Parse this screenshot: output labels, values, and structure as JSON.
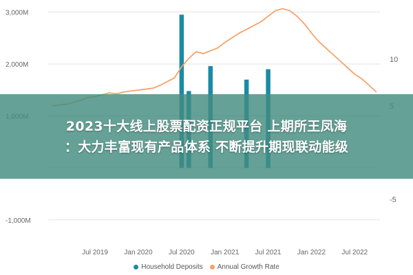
{
  "headline": {
    "line1": "2023十大线上股票配资正规平台 上期所王凤海",
    "line2": "：大力丰富现有产品体系 不断提升期现联动能级"
  },
  "chart_data": {
    "type": "bar",
    "title": "",
    "xlabel": "",
    "ylabel": "",
    "y2label": "",
    "y_ticks": [
      {
        "value": 3000,
        "label": "3,000M"
      },
      {
        "value": 2000,
        "label": "2,000M"
      },
      {
        "value": 1000,
        "label": "1,000M"
      },
      {
        "value": -1000,
        "label": "-1,000M"
      }
    ],
    "y2_ticks": [
      {
        "value": 10,
        "label": "10"
      },
      {
        "value": 5,
        "label": "5"
      },
      {
        "value": -5,
        "label": "-5"
      }
    ],
    "x_ticks": [
      {
        "date": "2019-07",
        "label": "Jul 2019"
      },
      {
        "date": "2020-01",
        "label": "Jan 2020"
      },
      {
        "date": "2020-07",
        "label": "Jul 2020"
      },
      {
        "date": "2021-01",
        "label": "Jan 2021"
      },
      {
        "date": "2021-07",
        "label": "Jul 2021"
      },
      {
        "date": "2022-01",
        "label": "Jan 2022"
      },
      {
        "date": "2022-07",
        "label": "Jul 2022"
      }
    ],
    "ylim": [
      -1400,
      3100
    ],
    "y2lim": [
      -9.4,
      15.6
    ],
    "grid": true,
    "legend_position": "bottom",
    "months": [
      "2019-01",
      "2019-02",
      "2019-03",
      "2019-04",
      "2019-05",
      "2019-06",
      "2019-07",
      "2019-08",
      "2019-09",
      "2019-10",
      "2019-11",
      "2019-12",
      "2020-01",
      "2020-02",
      "2020-03",
      "2020-04",
      "2020-05",
      "2020-06",
      "2020-07",
      "2020-08",
      "2020-09",
      "2020-10",
      "2020-11",
      "2020-12",
      "2021-01",
      "2021-02",
      "2021-03",
      "2021-04",
      "2021-05",
      "2021-06",
      "2021-07",
      "2021-08",
      "2021-09",
      "2021-10",
      "2021-11",
      "2021-12",
      "2022-01",
      "2022-02",
      "2022-03",
      "2022-04",
      "2022-05",
      "2022-06",
      "2022-07",
      "2022-08",
      "2022-09",
      "2022-10"
    ],
    "series": [
      {
        "name": "Household Deposits",
        "type": "bar",
        "axis": "left",
        "color": "#1a8ba5",
        "values": [
          null,
          null,
          null,
          null,
          null,
          null,
          null,
          null,
          null,
          null,
          null,
          null,
          null,
          null,
          null,
          null,
          null,
          null,
          2950,
          1480,
          null,
          null,
          1960,
          null,
          null,
          null,
          null,
          1700,
          null,
          null,
          1900,
          null,
          null,
          null,
          null,
          null,
          null,
          null,
          null,
          null,
          null,
          null,
          null,
          null,
          null,
          null
        ]
      },
      {
        "name": "Annual Growth Rate",
        "type": "line",
        "axis": "right",
        "color": "#f5a26b",
        "values": [
          5.0,
          5.1,
          5.2,
          5.4,
          5.6,
          5.9,
          6.0,
          6.2,
          6.4,
          6.3,
          6.5,
          6.6,
          6.7,
          6.8,
          6.9,
          7.2,
          7.6,
          8.0,
          9.2,
          10.1,
          10.8,
          10.6,
          10.9,
          11.2,
          11.8,
          12.3,
          12.8,
          13.2,
          13.6,
          14.0,
          14.6,
          15.2,
          15.4,
          15.2,
          14.6,
          13.8,
          12.8,
          11.9,
          11.2,
          10.5,
          9.8,
          9.1,
          8.4,
          7.9,
          7.2,
          6.5
        ]
      }
    ]
  }
}
